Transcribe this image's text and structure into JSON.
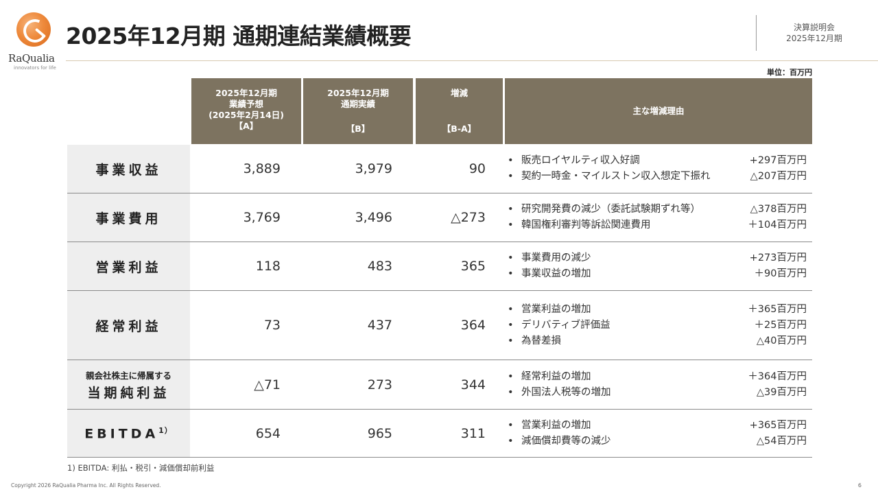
{
  "logo": {
    "name": "RaQualia",
    "tagline": "innovators for life"
  },
  "title": "2025年12月期 通期連結業績概要",
  "header_right": {
    "line1": "決算説明会",
    "line2": "2025年12月期"
  },
  "unit_label": "単位：百万円",
  "columns": {
    "forecast": {
      "line1": "2025年12月期",
      "line2": "業績予想",
      "line3": "(2025年2月14日)",
      "bracket": "【A】"
    },
    "actual": {
      "line1": "2025年12月期",
      "line2": "通期実績",
      "bracket": "【B】"
    },
    "diff": {
      "line1": "増減",
      "bracket": "【B-A】"
    },
    "reason": "主な増減理由"
  },
  "rows": [
    {
      "label": "事業収益",
      "a": "3,889",
      "b": "3,979",
      "diff": "90",
      "reasons": [
        {
          "text": "販売ロイヤルティ収入好調",
          "amount": "+297百万円"
        },
        {
          "text": "契約一時金・マイルストン収入想定下振れ",
          "amount": "△207百万円"
        }
      ]
    },
    {
      "label": "事業費用",
      "a": "3,769",
      "b": "3,496",
      "diff": "△273",
      "reasons": [
        {
          "text": "研究開発費の減少（委託試験期ずれ等）",
          "amount": "△378百万円"
        },
        {
          "text": "韓国権利審判等訴訟関連費用",
          "amount": "＋104百万円"
        }
      ]
    },
    {
      "label": "営業利益",
      "a": "118",
      "b": "483",
      "diff": "365",
      "reasons": [
        {
          "text": "事業費用の減少",
          "amount": "+273百万円"
        },
        {
          "text": "事業収益の増加",
          "amount": "＋90百万円"
        }
      ]
    },
    {
      "label": "経常利益",
      "a": "73",
      "b": "437",
      "diff": "364",
      "reasons": [
        {
          "text": "営業利益の増加",
          "amount": "＋365百万円"
        },
        {
          "text": "デリバティブ評価益",
          "amount": "＋25百万円"
        },
        {
          "text": "為替差損",
          "amount": "△40百万円"
        }
      ]
    },
    {
      "label_sub": "親会社株主に帰属する",
      "label": "当期純利益",
      "a": "△71",
      "b": "273",
      "diff": "344",
      "reasons": [
        {
          "text": "経常利益の増加",
          "amount": "＋364百万円"
        },
        {
          "text": "外国法人税等の増加",
          "amount": "△39百万円"
        }
      ]
    },
    {
      "label": "EBITDA",
      "label_sup": "1）",
      "a": "654",
      "b": "965",
      "diff": "311",
      "reasons": [
        {
          "text": "営業利益の増加",
          "amount": "+365百万円"
        },
        {
          "text": "減価償却費等の減少",
          "amount": "△54百万円"
        }
      ]
    }
  ],
  "footnote": "1) EBITDA: 利払・税引・減価償却前利益",
  "copyright": "Copyright 2026 RaQualia Pharma Inc. All Rights Reserved.",
  "page_number": "6"
}
